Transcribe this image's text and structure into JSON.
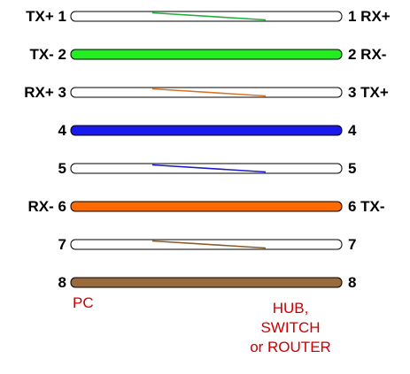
{
  "pins": [
    {
      "number": "1",
      "left_signal": "TX+",
      "right_signal": "RX+",
      "solid": false,
      "color": "#1fae3a"
    },
    {
      "number": "2",
      "left_signal": "TX-",
      "right_signal": "RX-",
      "solid": true,
      "color": "#22ee22"
    },
    {
      "number": "3",
      "left_signal": "RX+",
      "right_signal": "TX+",
      "solid": false,
      "color": "#d4762a"
    },
    {
      "number": "4",
      "left_signal": "",
      "right_signal": "",
      "solid": true,
      "color": "#1a1aee"
    },
    {
      "number": "5",
      "left_signal": "",
      "right_signal": "",
      "solid": false,
      "color": "#1a1acc"
    },
    {
      "number": "6",
      "left_signal": "RX-",
      "right_signal": "TX-",
      "solid": true,
      "color": "#ff6a00"
    },
    {
      "number": "7",
      "left_signal": "",
      "right_signal": "",
      "solid": false,
      "color": "#8b5a2b"
    },
    {
      "number": "8",
      "left_signal": "",
      "right_signal": "",
      "solid": true,
      "color": "#9a6a3a"
    }
  ],
  "devices": {
    "left": "PC",
    "right": [
      "HUB,",
      "SWITCH",
      "or ROUTER"
    ]
  },
  "colors": {
    "label_text": "#000000",
    "device_text": "#cc0000",
    "wire_outline": "#000000"
  }
}
